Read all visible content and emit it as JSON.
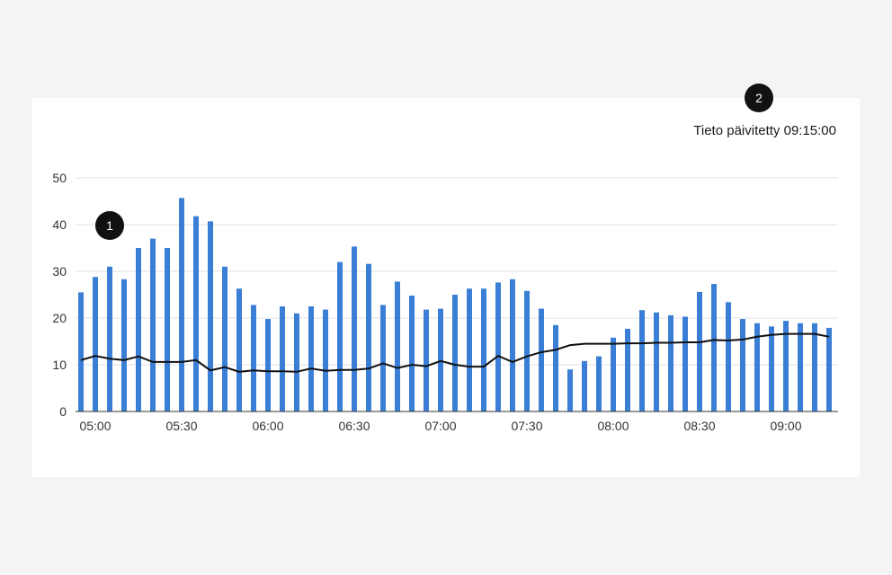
{
  "header": {
    "updated_text": "Tieto päivitetty 09:15:00"
  },
  "markers": [
    {
      "label": "1"
    },
    {
      "label": "2"
    }
  ],
  "colors": {
    "bar": "#3a7fd5",
    "line": "#111111",
    "grid": "#e2e2e2",
    "axis": "#333333"
  },
  "chart_data": {
    "type": "bar",
    "title": "",
    "xlabel": "",
    "ylabel": "",
    "ylim": [
      0,
      50
    ],
    "yticks": [
      0,
      10,
      20,
      30,
      40,
      50
    ],
    "grid": true,
    "x_tick_labels": [
      "05:00",
      "05:30",
      "06:00",
      "06:30",
      "07:00",
      "07:30",
      "08:00",
      "08:30",
      "09:00"
    ],
    "categories": [
      "04:55",
      "05:00",
      "05:05",
      "05:10",
      "05:15",
      "05:20",
      "05:25",
      "05:30",
      "05:35",
      "05:40",
      "05:45",
      "05:50",
      "05:55",
      "06:00",
      "06:05",
      "06:10",
      "06:15",
      "06:20",
      "06:25",
      "06:30",
      "06:35",
      "06:40",
      "06:45",
      "06:50",
      "06:55",
      "07:00",
      "07:05",
      "07:10",
      "07:15",
      "07:20",
      "07:25",
      "07:30",
      "07:35",
      "07:40",
      "07:45",
      "07:50",
      "07:55",
      "08:00",
      "08:05",
      "08:10",
      "08:15",
      "08:20",
      "08:25",
      "08:30",
      "08:35",
      "08:40",
      "08:45",
      "08:50",
      "08:55",
      "09:00",
      "09:05",
      "09:10",
      "09:15"
    ],
    "series": [
      {
        "type": "bar",
        "values": [
          25.5,
          28.8,
          31.0,
          28.3,
          35.0,
          37.0,
          35.0,
          45.7,
          41.8,
          40.7,
          31.0,
          26.3,
          22.8,
          19.8,
          22.5,
          21.0,
          22.5,
          21.8,
          32.0,
          35.3,
          31.6,
          22.8,
          27.8,
          24.8,
          21.8,
          22.0,
          25.0,
          26.3,
          26.3,
          27.6,
          28.3,
          25.8,
          22.0,
          18.5,
          9.0,
          10.8,
          11.8,
          15.8,
          17.7,
          21.7,
          21.2,
          20.6,
          20.3,
          25.6,
          27.3,
          23.4,
          19.8,
          18.9,
          18.2,
          19.4,
          18.9,
          18.9,
          17.9
        ]
      },
      {
        "type": "line",
        "values": [
          11.0,
          11.9,
          11.3,
          11.0,
          11.8,
          10.6,
          10.6,
          10.6,
          11.0,
          8.8,
          9.5,
          8.5,
          8.8,
          8.6,
          8.6,
          8.5,
          9.2,
          8.7,
          8.9,
          8.9,
          9.2,
          10.3,
          9.3,
          10.0,
          9.7,
          10.8,
          10.0,
          9.6,
          9.6,
          11.9,
          10.6,
          11.8,
          12.7,
          13.2,
          14.2,
          14.5,
          14.5,
          14.5,
          14.6,
          14.6,
          14.7,
          14.7,
          14.8,
          14.8,
          15.3,
          15.2,
          15.4,
          16.0,
          16.4,
          16.6,
          16.6,
          16.6,
          16.0
        ]
      }
    ]
  }
}
